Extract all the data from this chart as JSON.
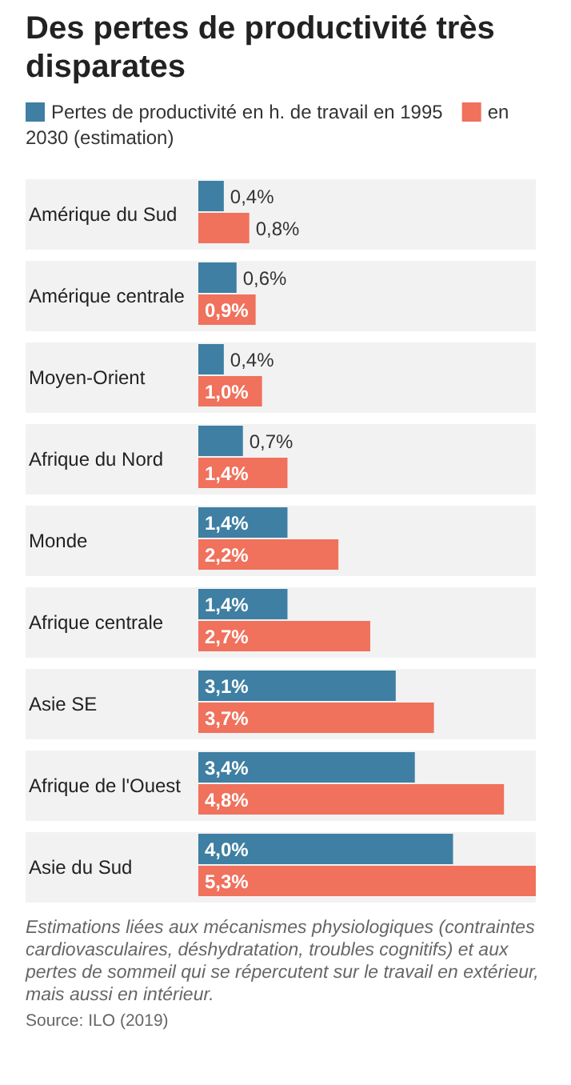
{
  "chart_data": {
    "type": "bar",
    "orientation": "horizontal",
    "title": "Des pertes de productivité très disparates",
    "categories": [
      "Amérique du Sud",
      "Amérique centrale",
      "Moyen-Orient",
      "Afrique du Nord",
      "Monde",
      "Afrique centrale",
      "Asie SE",
      "Afrique de l'Ouest",
      "Asie du Sud"
    ],
    "series": [
      {
        "name": "Pertes de productivité en h. de travail en 1995",
        "color": "#3e7fa3",
        "values": [
          0.4,
          0.6,
          0.4,
          0.7,
          1.4,
          1.4,
          3.1,
          3.4,
          4.0
        ],
        "value_labels": [
          "0,4%",
          "0,6%",
          "0,4%",
          "0,7%",
          "1,4%",
          "1,4%",
          "3,1%",
          "3,4%",
          "4,0%"
        ]
      },
      {
        "name": "en 2030 (estimation)",
        "color": "#f0715c",
        "values": [
          0.8,
          0.9,
          1.0,
          1.4,
          2.2,
          2.7,
          3.7,
          4.8,
          5.3
        ],
        "value_labels": [
          "0,8%",
          "0,9%",
          "1,0%",
          "1,4%",
          "2,2%",
          "2,7%",
          "3,7%",
          "4,8%",
          "5,3%"
        ]
      }
    ],
    "legend": "top left",
    "annotations": [
      "Estimations liées aux mécanismes physiologiques (contraintes cardiovasculaires, déshydratation, troubles cognitifs) et aux pertes de sommeil qui se répercutent sur le travail en extérieur, mais aussi en intérieur.",
      "Source: ILO (2019)"
    ]
  }
}
